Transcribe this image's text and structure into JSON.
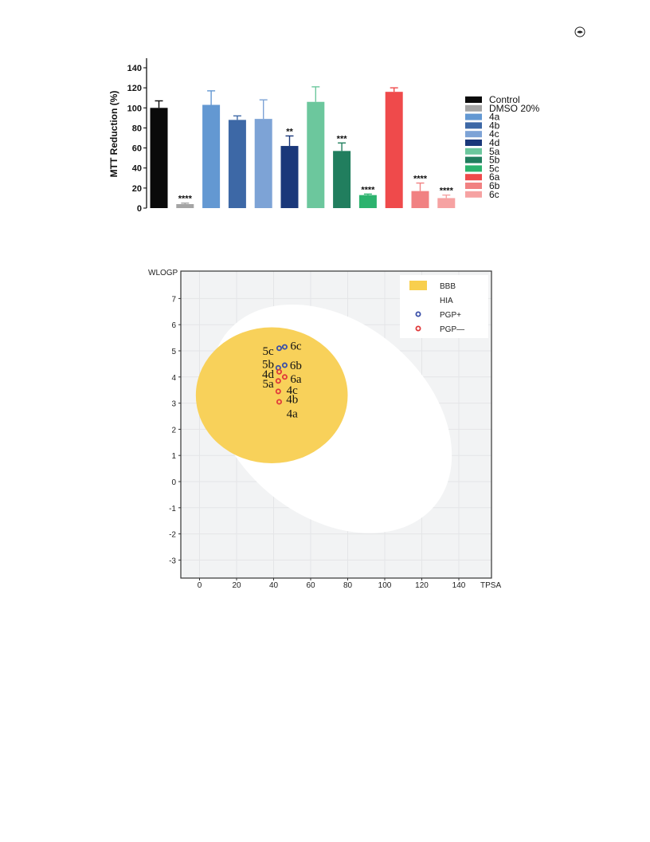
{
  "page": {
    "corner_icon": "leaf-circle-icon"
  },
  "chart_data": [
    {
      "type": "bar",
      "title": "",
      "ylabel": "MTT Reduction  (%)",
      "xlabel": "",
      "ylim": [
        0,
        140
      ],
      "yticks": [
        0,
        20,
        40,
        60,
        80,
        100,
        120,
        140
      ],
      "ytick_labels": [
        "0",
        "20",
        "40",
        "60",
        "80",
        "100",
        "120",
        "140"
      ],
      "legend_position": "right",
      "grid": false,
      "categories": [
        "Control",
        "DMSO 20%",
        "4a",
        "4b",
        "4c",
        "4d",
        "5a",
        "5b",
        "5c",
        "6a",
        "6b",
        "6c"
      ],
      "values": [
        100,
        4,
        103,
        88,
        89,
        62,
        106,
        57,
        13,
        116,
        17,
        10
      ],
      "errors": [
        7,
        1,
        14,
        4,
        19,
        10,
        15,
        8,
        1,
        4,
        8,
        3
      ],
      "significance": [
        "",
        "****",
        "",
        "",
        "",
        "**",
        "",
        "***",
        "****",
        "",
        "****",
        "****"
      ],
      "colors": [
        "#0a0a0a",
        "#a4a4a4",
        "#6398d2",
        "#3d68a6",
        "#7da3d6",
        "#1a387a",
        "#6cc79d",
        "#217e5e",
        "#2cb36e",
        "#ef4a4b",
        "#f18182",
        "#f6a2a2"
      ]
    },
    {
      "type": "scatter",
      "title": "",
      "xlabel": "TPSA",
      "ylabel": "WLOGP",
      "xlim": [
        -10,
        160
      ],
      "ylim": [
        -4,
        8
      ],
      "xticks": [
        0,
        20,
        40,
        60,
        80,
        100,
        120,
        140
      ],
      "xtick_labels": [
        "0",
        "20",
        "40",
        "60",
        "80",
        "100",
        "120",
        "140"
      ],
      "yticks": [
        -3,
        -2,
        -1,
        0,
        1,
        2,
        3,
        4,
        5,
        6,
        7
      ],
      "ytick_labels": [
        "-3",
        "-2",
        "-1",
        "0",
        "1",
        "2",
        "3",
        "4",
        "5",
        "6",
        "7"
      ],
      "grid": true,
      "legend_position": "top-right",
      "regions": [
        {
          "name": "HIA",
          "color": "#ffffff",
          "cx": 71,
          "cy": 2.4,
          "rx": 73,
          "ry": 3.7,
          "rotate": 40
        },
        {
          "name": "BBB",
          "color": "#f8d15a",
          "cx": 39,
          "cy": 3.3,
          "rx": 41,
          "ry": 2.6,
          "rotate": 0
        }
      ],
      "legend": [
        {
          "label": "BBB",
          "kind": "swatch",
          "color": "#f8cf4e"
        },
        {
          "label": "HIA",
          "kind": "swatch",
          "color": "#ffffff"
        },
        {
          "label": "PGP+",
          "kind": "circle",
          "color": "#3a4fa8"
        },
        {
          "label": "PGP—",
          "kind": "circle",
          "color": "#e0393a"
        }
      ],
      "points": [
        {
          "x": 43,
          "y": 5.1,
          "group": "PGP+"
        },
        {
          "x": 46,
          "y": 5.15,
          "group": "PGP+"
        },
        {
          "x": 42.5,
          "y": 4.35,
          "group": "PGP+"
        },
        {
          "x": 46,
          "y": 4.45,
          "group": "PGP+"
        },
        {
          "x": 43,
          "y": 4.2,
          "group": "PGP—"
        },
        {
          "x": 46,
          "y": 4.0,
          "group": "PGP—"
        },
        {
          "x": 42.5,
          "y": 3.85,
          "group": "PGP—"
        },
        {
          "x": 42.5,
          "y": 3.45,
          "group": "PGP—"
        },
        {
          "x": 43,
          "y": 3.05,
          "group": "PGP—"
        }
      ],
      "point_labels": [
        {
          "text": "5c",
          "x": 37,
          "y": 5.0
        },
        {
          "text": "6c",
          "x": 52,
          "y": 5.2
        },
        {
          "text": "5b",
          "x": 37,
          "y": 4.5
        },
        {
          "text": "6b",
          "x": 52,
          "y": 4.45
        },
        {
          "text": "4d",
          "x": 37,
          "y": 4.12
        },
        {
          "text": "6a",
          "x": 52,
          "y": 3.93
        },
        {
          "text": "5a",
          "x": 37,
          "y": 3.75
        },
        {
          "text": "4c",
          "x": 50,
          "y": 3.5
        },
        {
          "text": "4b",
          "x": 50,
          "y": 3.15
        },
        {
          "text": "4a",
          "x": 50,
          "y": 2.6
        }
      ]
    }
  ]
}
